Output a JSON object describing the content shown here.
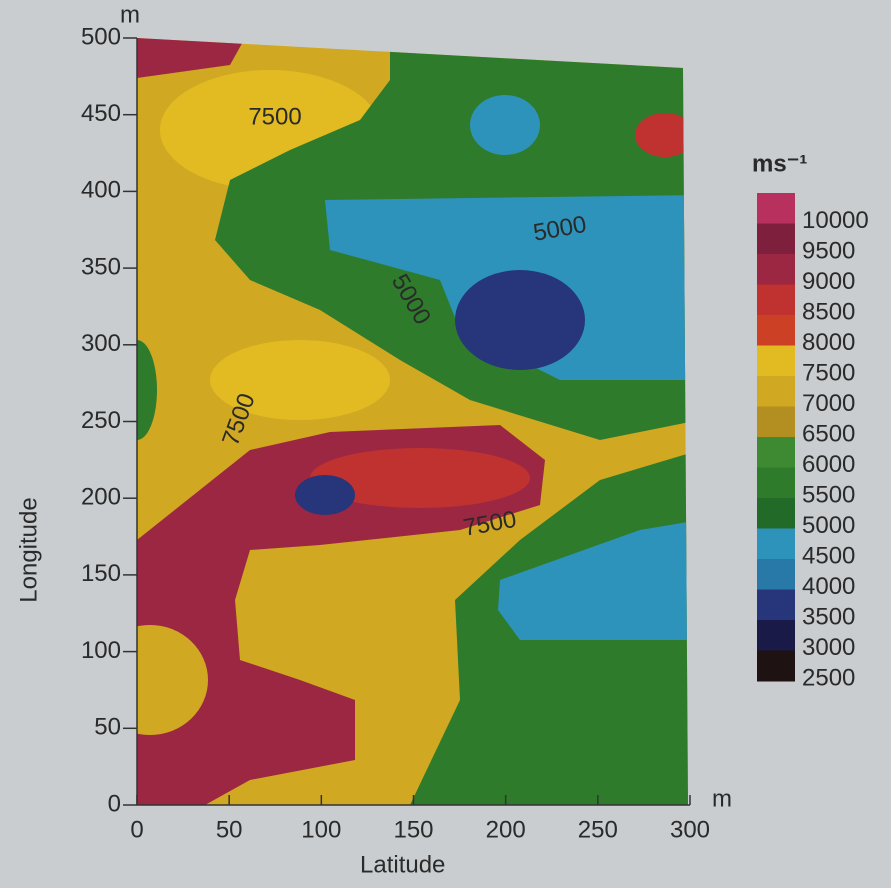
{
  "chart_data": {
    "type": "contour",
    "x_label": "Latitude",
    "y_label": "Longitude",
    "x_unit": "m",
    "y_unit": "m",
    "xlim": [
      0,
      300
    ],
    "ylim": [
      0,
      500
    ],
    "xticks": [
      0,
      50,
      100,
      150,
      200,
      250,
      300
    ],
    "yticks": [
      0,
      50,
      100,
      150,
      200,
      250,
      300,
      350,
      400,
      450,
      500
    ],
    "contour_labels": [
      "7500",
      "7500",
      "7500",
      "5000",
      "5000"
    ],
    "colorbar": {
      "title": "ms⁻¹",
      "levels": [
        10000,
        9500,
        9000,
        8500,
        8000,
        7500,
        7000,
        6500,
        6000,
        5500,
        5000,
        4500,
        4000,
        3500,
        3000,
        2500
      ],
      "colors": [
        "#b8305e",
        "#7e1f3e",
        "#9c2742",
        "#bf3230",
        "#cc4026",
        "#e2bb22",
        "#d1a821",
        "#b38e20",
        "#3d8a32",
        "#2f7b2c",
        "#216a27",
        "#2d93bb",
        "#2979a8",
        "#27357a",
        "#1a1a48",
        "#1e1212"
      ]
    }
  }
}
